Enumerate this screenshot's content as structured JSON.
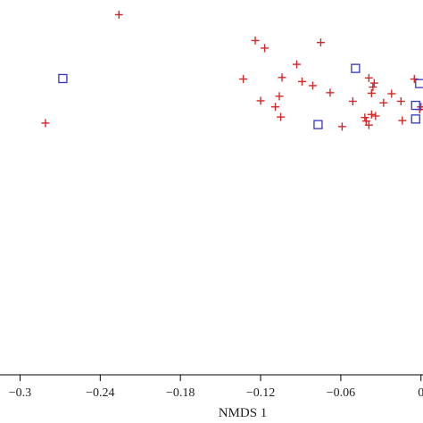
{
  "chart_data": {
    "type": "scatter",
    "title": "",
    "xlabel": "NMDS 1",
    "ylabel": "",
    "xlim": [
      -0.315,
      0.0015
    ],
    "ylim": [
      -0.3,
      0.44
    ],
    "x_tick_values": [
      -0.3,
      -0.24,
      -0.18,
      -0.12,
      -0.06,
      0
    ],
    "x_tick_labels": [
      "−0.3",
      "−0.24",
      "−0.18",
      "−0.12",
      "−0.06",
      "0"
    ],
    "grid": false,
    "legend": "none",
    "series": [
      {
        "marker": "plus",
        "color": "#d62728",
        "points": [
          {
            "x": -0.226,
            "y": 0.411
          },
          {
            "x": -0.281,
            "y": 0.197
          },
          {
            "x": -0.124,
            "y": 0.36
          },
          {
            "x": -0.117,
            "y": 0.345
          },
          {
            "x": -0.075,
            "y": 0.356
          },
          {
            "x": -0.093,
            "y": 0.313
          },
          {
            "x": -0.133,
            "y": 0.284
          },
          {
            "x": -0.104,
            "y": 0.287
          },
          {
            "x": -0.089,
            "y": 0.279
          },
          {
            "x": -0.081,
            "y": 0.271
          },
          {
            "x": -0.039,
            "y": 0.286
          },
          {
            "x": -0.035,
            "y": 0.276
          },
          {
            "x": -0.036,
            "y": 0.268
          },
          {
            "x": -0.068,
            "y": 0.257
          },
          {
            "x": -0.037,
            "y": 0.256
          },
          {
            "x": -0.022,
            "y": 0.255
          },
          {
            "x": -0.106,
            "y": 0.25
          },
          {
            "x": -0.12,
            "y": 0.241
          },
          {
            "x": -0.051,
            "y": 0.24
          },
          {
            "x": -0.028,
            "y": 0.237
          },
          {
            "x": -0.015,
            "y": 0.24
          },
          {
            "x": -0.109,
            "y": 0.229
          },
          {
            "x": -0.037,
            "y": 0.214
          },
          {
            "x": -0.034,
            "y": 0.211
          },
          {
            "x": -0.042,
            "y": 0.208
          },
          {
            "x": -0.105,
            "y": 0.209
          },
          {
            "x": -0.041,
            "y": 0.201
          },
          {
            "x": -0.014,
            "y": 0.202
          },
          {
            "x": -0.059,
            "y": 0.19
          },
          {
            "x": -0.039,
            "y": 0.193
          },
          {
            "x": -0.005,
            "y": 0.284
          },
          {
            "x": -0.001,
            "y": 0.224
          },
          {
            "x": 0.0,
            "y": 0.229
          }
        ]
      },
      {
        "marker": "square",
        "color": "#3535c4",
        "points": [
          {
            "x": -0.268,
            "y": 0.285
          },
          {
            "x": -0.049,
            "y": 0.305
          },
          {
            "x": -0.077,
            "y": 0.194
          },
          {
            "x": -0.001,
            "y": 0.275
          },
          {
            "x": -0.004,
            "y": 0.232
          },
          {
            "x": -0.004,
            "y": 0.205
          }
        ]
      }
    ]
  }
}
